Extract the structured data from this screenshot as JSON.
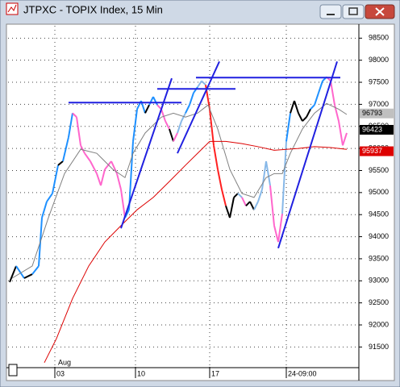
{
  "chart_data": {
    "type": "line",
    "title": "JTPXC - TOPIX Index, 15 Min",
    "month_label": "Aug",
    "xlim": [
      0,
      435
    ],
    "ylim": [
      91050,
      98780
    ],
    "xticks": [
      {
        "value": 58,
        "label": "03"
      },
      {
        "value": 158,
        "label": "10"
      },
      {
        "value": 250,
        "label": "17"
      },
      {
        "value": 345,
        "label": "24-09:00"
      }
    ],
    "yticks": [
      91500,
      92000,
      92500,
      93000,
      93500,
      94000,
      94500,
      95000,
      95500,
      96000,
      96500,
      97000,
      97500,
      98000,
      98500
    ],
    "grid": true,
    "series": [
      {
        "color": "#000000",
        "x": [
          2,
          10,
          20,
          30,
          38,
          42,
          48,
          55,
          62,
          68,
          75,
          80,
          85,
          90,
          95,
          102,
          110,
          115,
          120,
          128,
          135,
          140,
          145,
          150,
          155,
          160,
          165,
          170,
          175,
          180,
          185,
          190,
          195,
          200,
          205,
          210,
          215,
          220,
          225,
          230,
          235,
          240,
          245,
          250,
          255,
          260,
          265,
          270,
          275,
          280,
          285,
          290,
          295,
          300,
          305,
          310,
          315,
          320,
          325,
          330,
          335,
          340,
          345,
          350,
          355,
          360,
          365,
          370,
          375,
          380,
          385,
          390,
          395,
          400,
          405,
          410,
          415,
          420
        ],
        "values": [
          92970,
          93335,
          93060,
          93150,
          93335,
          94430,
          94795,
          94980,
          95620,
          95710,
          96255,
          96800,
          96710,
          96070,
          95890,
          95710,
          95430,
          95160,
          95525,
          95710,
          95430,
          95070,
          94430,
          94610,
          96160,
          96890,
          97080,
          96800,
          96985,
          97170,
          96985,
          96890,
          96620,
          96440,
          96160,
          96350,
          96620,
          96800,
          96985,
          97260,
          97390,
          97530,
          97440,
          96890,
          96070,
          95525,
          95070,
          94700,
          94430,
          94890,
          94980,
          94890,
          94700,
          94795,
          94610,
          94795,
          95070,
          95710,
          95160,
          94250,
          93880,
          94520,
          96160,
          96800,
          97080,
          96800,
          96620,
          96710,
          96890,
          96985,
          97260,
          97530,
          97620,
          97530,
          96985,
          96620,
          96070,
          96350
        ],
        "point_colors": [
          "#000000",
          "#000000",
          "#1e90ff",
          "#000000",
          "#1e90ff",
          "#1e90ff",
          "#1e90ff",
          "#1e90ff",
          "#1e90ff",
          "#000000",
          "#1e90ff",
          "#1e90ff",
          "#ff66cc",
          "#ff66cc",
          "#ff66cc",
          "#ff66cc",
          "#ff66cc",
          "#ff66cc",
          "#ff66cc",
          "#ff66cc",
          "#ff66cc",
          "#ff66cc",
          "#ff66cc",
          "#1e90ff",
          "#1e90ff",
          "#1e90ff",
          "#1e90ff",
          "#1e90ff",
          "#000000",
          "#1e90ff",
          "#1e90ff",
          "#ff66cc",
          "#ff66cc",
          "#ff66cc",
          "#000000",
          "#ff66cc",
          "#87b8e8",
          "#87b8e8",
          "#1e90ff",
          "#1e90ff",
          "#1e90ff",
          "#87b8e8",
          "#87b8e8",
          "#ff2020",
          "#ff2020",
          "#ff2020",
          "#ff2020",
          "#ff2020",
          "#000000",
          "#000000",
          "#000000",
          "#87b8e8",
          "#ff66cc",
          "#000000",
          "#000000",
          "#87b8e8",
          "#87b8e8",
          "#87b8e8",
          "#87b8e8",
          "#ff66cc",
          "#ff66cc",
          "#ff66cc",
          "#87b8e8",
          "#1e90ff",
          "#000000",
          "#000000",
          "#000000",
          "#000000",
          "#000000",
          "#1e90ff",
          "#1e90ff",
          "#1e90ff",
          "#1e90ff",
          "#ff66cc",
          "#ff66cc",
          "#ff66cc",
          "#ff66cc",
          "#ff66cc"
        ]
      },
      {
        "color": "#808080",
        "x": [
          5,
          30,
          50,
          70,
          90,
          110,
          130,
          145,
          155,
          170,
          190,
          205,
          220,
          235,
          248,
          260,
          275,
          290,
          305,
          320,
          330,
          340,
          350,
          365,
          380,
          395,
          410,
          420
        ],
        "values": [
          93060,
          93335,
          94430,
          95430,
          95980,
          95890,
          95525,
          95340,
          95890,
          96350,
          96710,
          96800,
          96710,
          96800,
          96985,
          96440,
          95525,
          94980,
          94890,
          95340,
          95430,
          95430,
          95890,
          96440,
          96800,
          97020,
          96890,
          96770
        ]
      },
      {
        "color": "#dd0000",
        "x": [
          45,
          60,
          80,
          100,
          120,
          140,
          160,
          180,
          200,
          220,
          240,
          250,
          270,
          290,
          310,
          330,
          345,
          360,
          380,
          400,
          420
        ],
        "values": [
          91145,
          91690,
          92600,
          93335,
          93880,
          94250,
          94610,
          94890,
          95250,
          95620,
          95980,
          96160,
          96160,
          96110,
          96040,
          95960,
          95980,
          96000,
          96040,
          96020,
          95980
        ]
      }
    ],
    "trendlines": {
      "color": "#2020e0",
      "lines": [
        {
          "x": [
            75,
            215
          ],
          "y": [
            97040,
            97040
          ]
        },
        {
          "x": [
            185,
            282
          ],
          "y": [
            97350,
            97350
          ]
        },
        {
          "x": [
            233,
            412
          ],
          "y": [
            97605,
            97605
          ]
        },
        {
          "x": [
            140,
            203
          ],
          "y": [
            94190,
            97590
          ]
        },
        {
          "x": [
            210,
            262
          ],
          "y": [
            95890,
            97970
          ]
        },
        {
          "x": [
            335,
            408
          ],
          "y": [
            93740,
            97970
          ]
        }
      ]
    },
    "last_labels": [
      {
        "value": 96793,
        "color": "#c0c0c0",
        "text_color": "#000000"
      },
      {
        "value": 96423,
        "color": "#000000",
        "text_color": "#ffffff"
      },
      {
        "value": 95937,
        "color": "#dd0000",
        "text_color": "#ffffff"
      }
    ]
  }
}
